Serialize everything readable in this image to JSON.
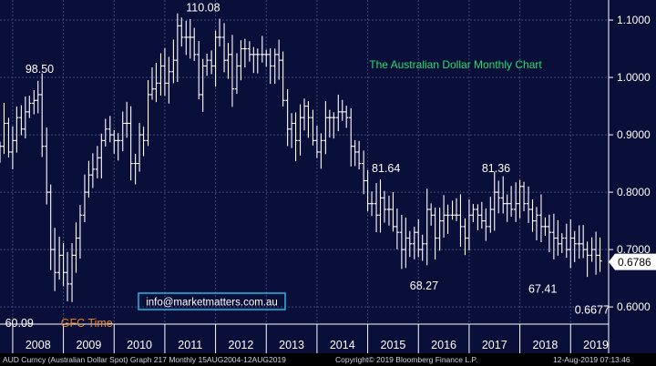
{
  "chart_data": {
    "type": "ohlc",
    "title": "The Australian Dollar Monthly Chart",
    "title_color": "#27e06a",
    "bar_color": "#ffffff",
    "background": "#0a0f3a",
    "grid": true,
    "ylim": [
      0.57,
      1.135
    ],
    "yticks": [
      0.6,
      0.7,
      0.8,
      0.9,
      1.0,
      1.1
    ],
    "ytick_labels": [
      "0.6000",
      "0.7000",
      "0.8000",
      "0.9000",
      "1.0000",
      "1.1000"
    ],
    "xlim": [
      2007.75,
      2019.75
    ],
    "x_labels": [
      "2008",
      "2009",
      "2010",
      "2011",
      "2012",
      "2013",
      "2014",
      "2015",
      "2016",
      "2017",
      "2018",
      "2019"
    ],
    "series": [
      {
        "points": [
          [
            2007.75,
            0.88
          ],
          [
            2007.83,
            0.92
          ],
          [
            2007.92,
            0.87
          ],
          [
            2008.0,
            0.89
          ],
          [
            2008.08,
            0.93
          ],
          [
            2008.17,
            0.91
          ],
          [
            2008.25,
            0.94
          ],
          [
            2008.33,
            0.955
          ],
          [
            2008.42,
            0.96
          ],
          [
            2008.5,
            0.97
          ],
          [
            2008.58,
            0.88
          ],
          [
            2008.67,
            0.8
          ],
          [
            2008.75,
            0.7
          ],
          [
            2008.83,
            0.66
          ],
          [
            2008.92,
            0.69
          ],
          [
            2009.0,
            0.66
          ],
          [
            2009.08,
            0.64
          ],
          [
            2009.17,
            0.69
          ],
          [
            2009.25,
            0.72
          ],
          [
            2009.33,
            0.76
          ],
          [
            2009.42,
            0.8
          ],
          [
            2009.5,
            0.83
          ],
          [
            2009.58,
            0.84
          ],
          [
            2009.67,
            0.86
          ],
          [
            2009.75,
            0.89
          ],
          [
            2009.83,
            0.91
          ],
          [
            2009.92,
            0.9
          ],
          [
            2010.0,
            0.89
          ],
          [
            2010.08,
            0.89
          ],
          [
            2010.17,
            0.92
          ],
          [
            2010.25,
            0.92
          ],
          [
            2010.33,
            0.85
          ],
          [
            2010.42,
            0.85
          ],
          [
            2010.5,
            0.9
          ],
          [
            2010.58,
            0.89
          ],
          [
            2010.67,
            0.97
          ],
          [
            2010.75,
            0.98
          ],
          [
            2010.83,
            0.99
          ],
          [
            2010.92,
            1.02
          ],
          [
            2011.0,
            0.99
          ],
          [
            2011.08,
            1.01
          ],
          [
            2011.17,
            1.03
          ],
          [
            2011.25,
            1.09
          ],
          [
            2011.33,
            1.07
          ],
          [
            2011.42,
            1.07
          ],
          [
            2011.5,
            1.07
          ],
          [
            2011.58,
            1.04
          ],
          [
            2011.67,
            0.97
          ],
          [
            2011.75,
            1.02
          ],
          [
            2011.83,
            1.03
          ],
          [
            2011.92,
            1.02
          ],
          [
            2012.0,
            1.07
          ],
          [
            2012.08,
            1.07
          ],
          [
            2012.17,
            1.03
          ],
          [
            2012.25,
            1.04
          ],
          [
            2012.33,
            0.98
          ],
          [
            2012.42,
            1.02
          ],
          [
            2012.5,
            1.05
          ],
          [
            2012.58,
            1.05
          ],
          [
            2012.67,
            1.04
          ],
          [
            2012.75,
            1.04
          ],
          [
            2012.83,
            1.04
          ],
          [
            2012.92,
            1.04
          ],
          [
            2013.0,
            1.04
          ],
          [
            2013.08,
            1.02
          ],
          [
            2013.17,
            1.04
          ],
          [
            2013.25,
            1.03
          ],
          [
            2013.33,
            0.96
          ],
          [
            2013.42,
            0.91
          ],
          [
            2013.5,
            0.92
          ],
          [
            2013.58,
            0.89
          ],
          [
            2013.67,
            0.93
          ],
          [
            2013.75,
            0.95
          ],
          [
            2013.83,
            0.93
          ],
          [
            2013.92,
            0.89
          ],
          [
            2014.0,
            0.87
          ],
          [
            2014.08,
            0.89
          ],
          [
            2014.17,
            0.93
          ],
          [
            2014.25,
            0.93
          ],
          [
            2014.33,
            0.93
          ],
          [
            2014.42,
            0.94
          ],
          [
            2014.5,
            0.94
          ],
          [
            2014.58,
            0.93
          ],
          [
            2014.67,
            0.88
          ],
          [
            2014.75,
            0.87
          ],
          [
            2014.83,
            0.85
          ],
          [
            2014.92,
            0.82
          ],
          [
            2015.0,
            0.78
          ],
          [
            2015.08,
            0.78
          ],
          [
            2015.17,
            0.76
          ],
          [
            2015.25,
            0.79
          ],
          [
            2015.33,
            0.77
          ],
          [
            2015.42,
            0.77
          ],
          [
            2015.5,
            0.74
          ],
          [
            2015.58,
            0.73
          ],
          [
            2015.67,
            0.7
          ],
          [
            2015.75,
            0.72
          ],
          [
            2015.83,
            0.71
          ],
          [
            2015.92,
            0.73
          ],
          [
            2016.0,
            0.7
          ],
          [
            2016.08,
            0.71
          ],
          [
            2016.17,
            0.77
          ],
          [
            2016.25,
            0.76
          ],
          [
            2016.33,
            0.72
          ],
          [
            2016.42,
            0.75
          ],
          [
            2016.5,
            0.76
          ],
          [
            2016.58,
            0.76
          ],
          [
            2016.67,
            0.76
          ],
          [
            2016.75,
            0.76
          ],
          [
            2016.83,
            0.74
          ],
          [
            2016.92,
            0.72
          ],
          [
            2017.0,
            0.76
          ],
          [
            2017.08,
            0.77
          ],
          [
            2017.17,
            0.76
          ],
          [
            2017.25,
            0.75
          ],
          [
            2017.33,
            0.74
          ],
          [
            2017.42,
            0.77
          ],
          [
            2017.5,
            0.8
          ],
          [
            2017.58,
            0.79
          ],
          [
            2017.67,
            0.78
          ],
          [
            2017.75,
            0.78
          ],
          [
            2017.83,
            0.77
          ],
          [
            2017.92,
            0.78
          ],
          [
            2018.0,
            0.81
          ],
          [
            2018.08,
            0.78
          ],
          [
            2018.17,
            0.77
          ],
          [
            2018.25,
            0.75
          ],
          [
            2018.33,
            0.76
          ],
          [
            2018.42,
            0.74
          ],
          [
            2018.5,
            0.74
          ],
          [
            2018.58,
            0.73
          ],
          [
            2018.67,
            0.72
          ],
          [
            2018.75,
            0.71
          ],
          [
            2018.83,
            0.72
          ],
          [
            2018.92,
            0.7
          ],
          [
            2019.0,
            0.72
          ],
          [
            2019.08,
            0.71
          ],
          [
            2019.17,
            0.71
          ],
          [
            2019.25,
            0.7
          ],
          [
            2019.33,
            0.69
          ],
          [
            2019.42,
            0.7
          ],
          [
            2019.5,
            0.69
          ],
          [
            2019.58,
            0.68
          ]
        ]
      }
    ],
    "last_price": {
      "value": 0.6786,
      "label": "0.6786"
    },
    "annotations": [
      {
        "text": "110.08",
        "x": 2011.42,
        "y": 1.115,
        "color": "#ffffff"
      },
      {
        "text": "98.50",
        "x": 2008.25,
        "y": 1.008,
        "color": "#ffffff"
      },
      {
        "text": "81.64",
        "x": 2015.08,
        "y": 0.835,
        "color": "#ffffff"
      },
      {
        "text": "81.36",
        "x": 2017.25,
        "y": 0.835,
        "color": "#ffffff"
      },
      {
        "text": "68.27",
        "x": 2015.83,
        "y": 0.63,
        "color": "#ffffff"
      },
      {
        "text": "67.41",
        "x": 2018.17,
        "y": 0.625,
        "color": "#ffffff"
      },
      {
        "text": "0.6677",
        "x": 2019.08,
        "y": 0.588,
        "color": "#ffffff"
      },
      {
        "text": "60.09",
        "x": 2007.85,
        "y": 0.565,
        "color": "#ffffff"
      },
      {
        "text": "GFC Time",
        "x": 2008.95,
        "y": 0.565,
        "color": "#e8822a"
      }
    ],
    "badge": {
      "text": "info@marketmatters.com.au",
      "color": "#ffffff",
      "border": "#29b6e8"
    }
  },
  "footer": {
    "left": "AUD Curncy (Australian Dollar Spot) Graph 217  Monthly 15AUG2004-12AUG2019",
    "middle": "Copyright© 2019 Bloomberg Finance L.P.",
    "right": "12-Aug-2019 07:13:46"
  }
}
